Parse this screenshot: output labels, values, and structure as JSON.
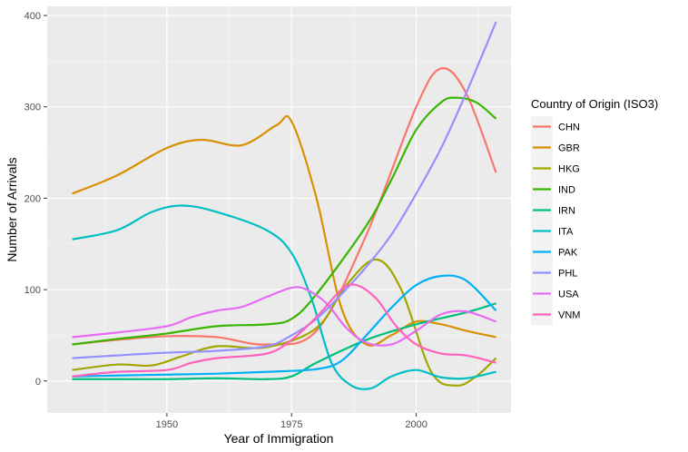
{
  "chart_data": {
    "type": "line",
    "xlabel": "Year of Immigration",
    "ylabel": "Number of Arrivals",
    "legend_title": "Country of Origin (ISO3)",
    "legend_position": "right",
    "grid": true,
    "xlim": [
      1926,
      2019
    ],
    "ylim": [
      -35,
      410
    ],
    "x_ticks": [
      1950,
      1975,
      2000
    ],
    "y_ticks": [
      0,
      100,
      200,
      300,
      400
    ],
    "series": [
      {
        "name": "CHN",
        "color": "#F8766D",
        "x": [
          1931,
          1940,
          1950,
          1960,
          1970,
          1980,
          1990,
          2000,
          2005,
          2010,
          2016
        ],
        "y": [
          40,
          45,
          49,
          48,
          40,
          55,
          160,
          300,
          342,
          315,
          228
        ]
      },
      {
        "name": "GBR",
        "color": "#D89000",
        "x": [
          1931,
          1940,
          1950,
          1957,
          1965,
          1972,
          1975,
          1980,
          1985,
          1990,
          1995,
          2000,
          2005,
          2010,
          2016
        ],
        "y": [
          205,
          225,
          255,
          264,
          258,
          280,
          284,
          200,
          80,
          40,
          50,
          65,
          62,
          55,
          48
        ]
      },
      {
        "name": "HKG",
        "color": "#A3A500",
        "x": [
          1931,
          1940,
          1947,
          1953,
          1960,
          1970,
          1980,
          1986,
          1992,
          1997,
          2003,
          2008,
          2012,
          2016
        ],
        "y": [
          12,
          18,
          17,
          27,
          38,
          37,
          58,
          105,
          133,
          100,
          10,
          -5,
          5,
          25
        ]
      },
      {
        "name": "IND",
        "color": "#39B600",
        "x": [
          1931,
          1940,
          1950,
          1960,
          1970,
          1975,
          1980,
          1990,
          1995,
          2000,
          2005,
          2008,
          2012,
          2016
        ],
        "y": [
          40,
          46,
          52,
          60,
          62,
          68,
          95,
          170,
          220,
          275,
          305,
          310,
          305,
          287
        ]
      },
      {
        "name": "IRN",
        "color": "#00BF7D",
        "x": [
          1931,
          1940,
          1950,
          1960,
          1970,
          1975,
          1980,
          1990,
          2000,
          2010,
          2016
        ],
        "y": [
          2,
          2,
          2,
          3,
          2,
          5,
          20,
          45,
          62,
          75,
          85
        ]
      },
      {
        "name": "ITA",
        "color": "#00BFC4",
        "x": [
          1931,
          1940,
          1947,
          1953,
          1960,
          1970,
          1975,
          1979,
          1983,
          1987,
          1991,
          1995,
          2000,
          2005,
          2010,
          2016
        ],
        "y": [
          155,
          165,
          185,
          192,
          185,
          165,
          140,
          90,
          20,
          -5,
          -8,
          5,
          12,
          4,
          3,
          10
        ]
      },
      {
        "name": "PAK",
        "color": "#00B0F6",
        "x": [
          1931,
          1940,
          1950,
          1960,
          1970,
          1980,
          1985,
          1990,
          1995,
          2000,
          2005,
          2010,
          2016
        ],
        "y": [
          5,
          6,
          7,
          8,
          10,
          13,
          22,
          50,
          80,
          105,
          115,
          110,
          77
        ]
      },
      {
        "name": "PHL",
        "color": "#9590FF",
        "x": [
          1931,
          1940,
          1950,
          1960,
          1970,
          1975,
          1980,
          1985,
          1990,
          1995,
          2000,
          2005,
          2010,
          2016
        ],
        "y": [
          25,
          28,
          31,
          33,
          38,
          50,
          68,
          95,
          125,
          160,
          205,
          255,
          315,
          393
        ]
      },
      {
        "name": "USA",
        "color": "#E76BF3",
        "x": [
          1931,
          1940,
          1950,
          1955,
          1960,
          1965,
          1970,
          1975,
          1978,
          1982,
          1986,
          1990,
          1995,
          2000,
          2005,
          2010,
          2016
        ],
        "y": [
          48,
          53,
          60,
          70,
          77,
          81,
          92,
          102,
          100,
          85,
          58,
          42,
          40,
          55,
          73,
          76,
          65
        ]
      },
      {
        "name": "VNM",
        "color": "#FF62BC",
        "x": [
          1931,
          1940,
          1950,
          1955,
          1960,
          1970,
          1975,
          1980,
          1985,
          1988,
          1992,
          1996,
          2000,
          2005,
          2010,
          2016
        ],
        "y": [
          5,
          10,
          12,
          20,
          25,
          30,
          45,
          70,
          100,
          105,
          90,
          60,
          40,
          30,
          28,
          20
        ]
      }
    ]
  }
}
